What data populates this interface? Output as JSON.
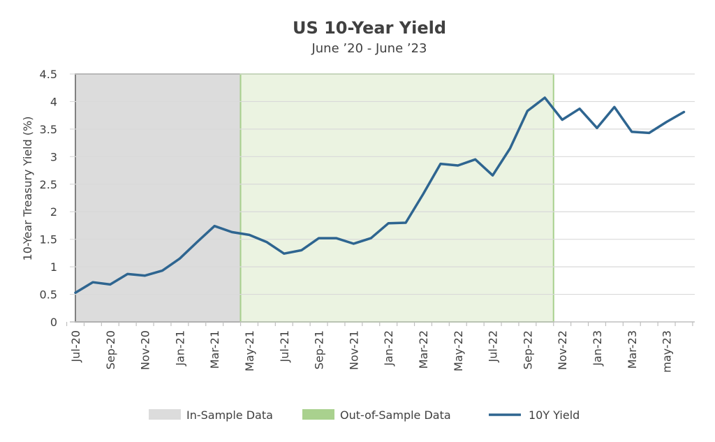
{
  "chart_data": {
    "type": "line",
    "title": "US 10-Year Yield",
    "subtitle": "June ’20 - June ’23",
    "xlabel": "",
    "ylabel": "10-Year Treasury Yield (%)",
    "ylim": [
      0,
      4.5
    ],
    "y_ticks": [
      "0",
      "0.5",
      "1",
      "1.5",
      "2",
      "2.5",
      "3",
      "3.5",
      "4",
      "4.5"
    ],
    "x_tick_labels": [
      "Jul-20",
      "Sep-20",
      "Nov-20",
      "Jan-21",
      "Mar-21",
      "May-21",
      "Jul-21",
      "Sep-21",
      "Nov-21",
      "Jan-22",
      "Mar-22",
      "May-22",
      "Jul-22",
      "Sep-22",
      "Nov-22",
      "Jan-23",
      "Mar-23",
      "may-23"
    ],
    "grid": true,
    "legend_position": "bottom",
    "regions": [
      {
        "name": "In-Sample Data",
        "start_index": 0,
        "end_index": 9.5,
        "color": "#dcdcdc",
        "border": "#808080"
      },
      {
        "name": "Out-of-Sample Data",
        "start_index": 9.5,
        "end_index": 27.5,
        "color": "#ebf3e1",
        "border": "#a8d08d"
      }
    ],
    "series": [
      {
        "name": "10Y Yield",
        "color": "#2e6590",
        "x": [
          0,
          1,
          2,
          3,
          4,
          5,
          6,
          7,
          8,
          9,
          10,
          11,
          12,
          13,
          14,
          15,
          16,
          17,
          18,
          19,
          20,
          21,
          22,
          23,
          24,
          25,
          26,
          27,
          28,
          29,
          30,
          31,
          32,
          33,
          34,
          35
        ],
        "values": [
          0.53,
          0.72,
          0.68,
          0.87,
          0.84,
          0.93,
          1.15,
          1.45,
          1.74,
          1.63,
          1.58,
          1.45,
          1.24,
          1.3,
          1.52,
          1.52,
          1.42,
          1.52,
          1.79,
          1.8,
          2.32,
          2.87,
          2.84,
          2.95,
          2.66,
          3.15,
          3.83,
          4.07,
          3.67,
          3.87,
          3.52,
          3.9,
          3.45,
          3.43,
          3.63,
          3.81
        ]
      }
    ],
    "legend": [
      {
        "label": "In-Sample Data",
        "kind": "box",
        "color": "#dcdcdc"
      },
      {
        "label": "Out-of-Sample Data",
        "kind": "box",
        "color": "#a9d18e"
      },
      {
        "label": "10Y Yield",
        "kind": "line",
        "color": "#2e6590"
      }
    ]
  }
}
